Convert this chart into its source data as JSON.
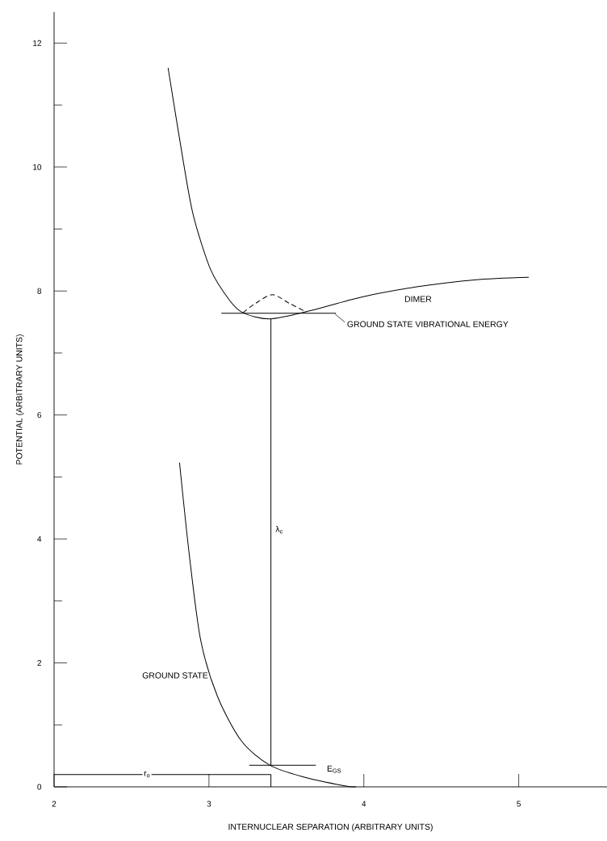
{
  "chart_data": {
    "type": "line",
    "xlabel": "INTERNUCLEAR SEPARATION (ARBITRARY UNITS)",
    "ylabel": "POTENTIAL (ARBITRARY UNITS)",
    "x": [
      2.736,
      2.835,
      2.9,
      3.01,
      3.13,
      3.219,
      3.393,
      3.65,
      3.98,
      4.35,
      4.715,
      5.065
    ],
    "series": [
      {
        "color": "#000000",
        "values": [
          11.6,
          10.08,
          9.21,
          8.35,
          7.86,
          7.65,
          7.55,
          7.68,
          7.9,
          8.07,
          8.18,
          8.22
        ]
      },
      {
        "color": "#000000",
        "line_style": "dashed",
        "x": [
          3.22,
          3.3,
          3.41,
          3.52,
          3.63
        ],
        "values": [
          7.65,
          7.8,
          7.94,
          7.8,
          7.66
        ]
      },
      {
        "color": "#000000",
        "x": [
          3.08,
          3.82
        ],
        "values": [
          7.64,
          7.64
        ]
      },
      {
        "color": "#000000",
        "x": [
          3.4,
          3.4
        ],
        "values": [
          7.55,
          0.35
        ]
      },
      {
        "color": "#000000",
        "x": [
          2.81,
          2.875,
          2.947,
          3.055,
          3.21,
          3.393,
          3.61,
          3.87,
          3.95
        ],
        "values": [
          5.23,
          3.7,
          2.36,
          1.46,
          0.74,
          0.35,
          0.16,
          0.02,
          0
        ]
      },
      {
        "color": "#000000",
        "x": [
          3.26,
          3.69
        ],
        "values": [
          0.35,
          0.35
        ]
      },
      {
        "color": "#000000",
        "x": [
          2,
          3.4
        ],
        "values": [
          0.2,
          0.2
        ]
      },
      {
        "color": "#000000",
        "x": [
          3.4,
          3.4
        ],
        "values": [
          0,
          0.2
        ]
      }
    ],
    "annotations": [
      {
        "text": "DIMER",
        "x": 4.35,
        "y": 8.07
      },
      {
        "text": "GROUND STATE VIBRATIONAL ENERGY",
        "x": 3.82,
        "y": 7.64
      },
      {
        "text": "GROUND STATE",
        "x": 3.055,
        "y": 1.46
      },
      {
        "text": "λ$_{c}$",
        "x": 3.4,
        "y": 4.15
      },
      {
        "text": "E$_{GS}$",
        "x": 3.69,
        "y": 0.35
      },
      {
        "text": "r$_{o}$",
        "x": 2.6,
        "y": 0.2
      }
    ],
    "xlim": [
      2,
      5.57
    ],
    "ylim": [
      0,
      12.5
    ],
    "xticks": [
      2,
      3,
      4,
      5
    ],
    "yticks": [
      0,
      2,
      4,
      6,
      8,
      10,
      12
    ],
    "grid": false,
    "marker": "none",
    "line_style": "solid"
  }
}
